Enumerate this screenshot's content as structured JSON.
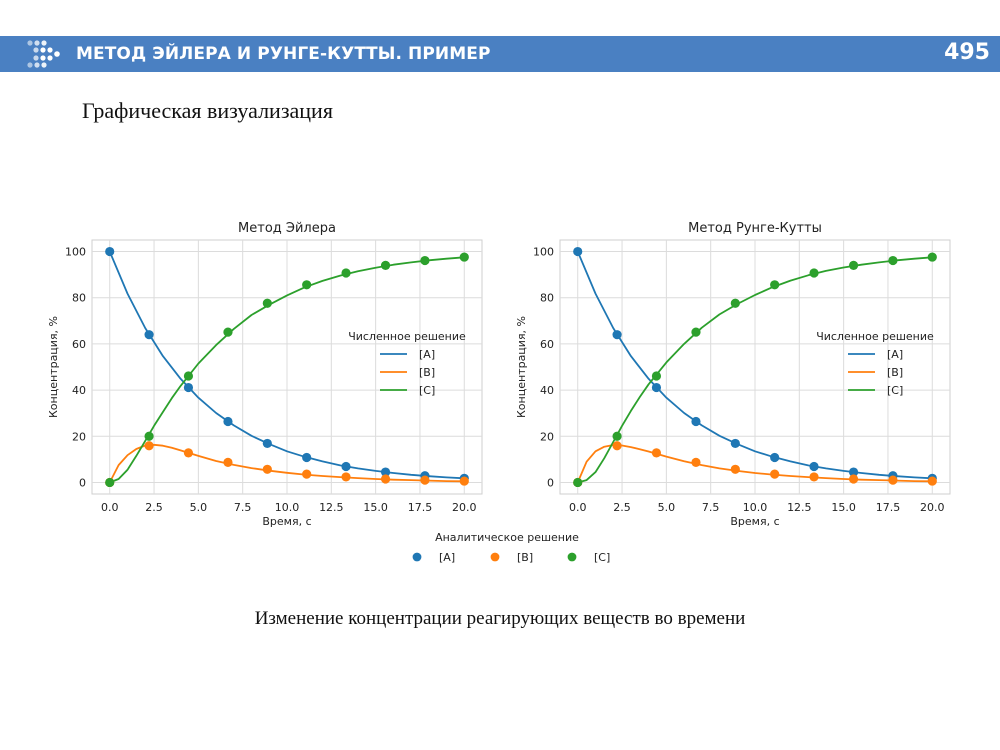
{
  "header": {
    "title": "МЕТОД ЭЙЛЕРА И РУНГЕ-КУТТЫ. ПРИМЕР",
    "page_number": "495",
    "logo_icon": "dots-arrow-logo-icon",
    "background": "#4a80c2"
  },
  "subtitle": "Графическая визуализация",
  "caption": "Изменение концентрации реагирующих веществ во времени",
  "chart_data": [
    {
      "type": "line",
      "title": "Метод Эйлера",
      "xlabel": "Время, с",
      "ylabel": "Концентрация, %",
      "xlim": [
        -1,
        21
      ],
      "ylim": [
        -5,
        105
      ],
      "xticks": [
        "0.0",
        "2.5",
        "5.0",
        "7.5",
        "10.0",
        "12.5",
        "15.0",
        "17.5",
        "20.0"
      ],
      "yticks": [
        "0",
        "20",
        "40",
        "60",
        "80",
        "100"
      ],
      "grid": true,
      "legend": {
        "title": "Численное решение",
        "position": "center-right",
        "entries": [
          "[A]",
          "[B]",
          "[C]"
        ]
      },
      "line_series": [
        {
          "name": "[A]",
          "color": "#1f77b4",
          "x": [
            0,
            1,
            2,
            3,
            4,
            5,
            6,
            7,
            8,
            9,
            10,
            11,
            12,
            13,
            14,
            15,
            16,
            17,
            18,
            19,
            20
          ],
          "y": [
            100,
            81.8,
            66.9,
            54.7,
            44.9,
            36.7,
            30.1,
            24.7,
            20.2,
            16.6,
            13.5,
            11.1,
            9.1,
            7.4,
            6.1,
            5.0,
            4.1,
            3.3,
            2.7,
            2.2,
            1.8
          ]
        },
        {
          "name": "[B]",
          "color": "#ff7f0e",
          "x": [
            0,
            0.5,
            1,
            1.5,
            2,
            2.5,
            3,
            3.5,
            4,
            5,
            6,
            7,
            8,
            9,
            10,
            11,
            12,
            13,
            14,
            15,
            16,
            17,
            18,
            19,
            20
          ],
          "y": [
            0,
            7.5,
            11.8,
            14.5,
            16.0,
            16.3,
            15.9,
            15.0,
            13.9,
            11.5,
            9.3,
            7.6,
            6.2,
            5.1,
            4.2,
            3.4,
            2.8,
            2.3,
            1.9,
            1.5,
            1.2,
            1.0,
            0.8,
            0.6,
            0.5
          ]
        },
        {
          "name": "[C]",
          "color": "#2ca02c",
          "x": [
            0,
            0.5,
            1,
            1.5,
            2,
            2.5,
            3,
            3.5,
            4,
            5,
            6,
            7,
            8,
            9,
            10,
            11,
            12,
            13,
            14,
            15,
            16,
            17,
            18,
            19,
            20
          ],
          "y": [
            0,
            1.5,
            5.5,
            11.5,
            18.0,
            24.5,
            30.5,
            36.5,
            41.8,
            51.5,
            59.5,
            66.5,
            72.5,
            77.0,
            81.0,
            84.5,
            87.3,
            89.6,
            91.5,
            93.0,
            94.3,
            95.3,
            96.2,
            96.9,
            97.5
          ]
        }
      ],
      "point_series": [
        {
          "name": "[A]",
          "color": "#1f77b4",
          "x": [
            0,
            2.22,
            4.44,
            6.67,
            8.89,
            11.11,
            13.33,
            15.56,
            17.78,
            20.0
          ],
          "y": [
            100,
            64.0,
            41.1,
            26.4,
            16.9,
            10.8,
            6.9,
            4.5,
            2.9,
            1.8
          ]
        },
        {
          "name": "[B]",
          "color": "#ff7f0e",
          "x": [
            0,
            2.22,
            4.44,
            6.67,
            8.89,
            11.11,
            13.33,
            15.56,
            17.78,
            20.0
          ],
          "y": [
            0,
            15.9,
            12.8,
            8.7,
            5.7,
            3.6,
            2.4,
            1.5,
            1.0,
            0.6
          ]
        },
        {
          "name": "[C]",
          "color": "#2ca02c",
          "x": [
            0,
            2.22,
            4.44,
            6.67,
            8.89,
            11.11,
            13.33,
            15.56,
            17.78,
            20.0
          ],
          "y": [
            0,
            20.0,
            46.1,
            65.1,
            77.6,
            85.6,
            90.7,
            94.0,
            96.1,
            97.6
          ]
        }
      ]
    },
    {
      "type": "line",
      "title": "Метод Рунге-Кутты",
      "xlabel": "Время, с",
      "ylabel": "Концентрация, %",
      "xlim": [
        -1,
        21
      ],
      "ylim": [
        -5,
        105
      ],
      "xticks": [
        "0.0",
        "2.5",
        "5.0",
        "7.5",
        "10.0",
        "12.5",
        "15.0",
        "17.5",
        "20.0"
      ],
      "yticks": [
        "0",
        "20",
        "40",
        "60",
        "80",
        "100"
      ],
      "grid": true,
      "legend": {
        "title": "Численное решение",
        "position": "center-right",
        "entries": [
          "[A]",
          "[B]",
          "[C]"
        ]
      },
      "line_series": [
        {
          "name": "[A]",
          "color": "#1f77b4",
          "x": [
            0,
            1,
            2,
            3,
            4,
            5,
            6,
            7,
            8,
            9,
            10,
            11,
            12,
            13,
            14,
            15,
            16,
            17,
            18,
            19,
            20
          ],
          "y": [
            100,
            81.8,
            66.9,
            54.7,
            44.9,
            36.7,
            30.1,
            24.7,
            20.2,
            16.6,
            13.5,
            11.1,
            9.1,
            7.4,
            6.1,
            5.0,
            4.1,
            3.3,
            2.7,
            2.2,
            1.8
          ]
        },
        {
          "name": "[B]",
          "color": "#ff7f0e",
          "x": [
            0,
            0.5,
            1,
            1.5,
            2,
            2.5,
            3,
            3.5,
            4,
            5,
            6,
            7,
            8,
            9,
            10,
            11,
            12,
            13,
            14,
            15,
            16,
            17,
            18,
            19,
            20
          ],
          "y": [
            0,
            9.0,
            13.5,
            15.5,
            16.2,
            16.0,
            15.3,
            14.4,
            13.4,
            11.2,
            9.2,
            7.5,
            6.1,
            5.0,
            4.1,
            3.4,
            2.8,
            2.3,
            1.9,
            1.5,
            1.2,
            1.0,
            0.8,
            0.6,
            0.5
          ]
        },
        {
          "name": "[C]",
          "color": "#2ca02c",
          "x": [
            0,
            0.5,
            1,
            1.5,
            2,
            2.5,
            3,
            3.5,
            4,
            5,
            6,
            7,
            8,
            9,
            10,
            11,
            12,
            13,
            14,
            15,
            16,
            17,
            18,
            19,
            20
          ],
          "y": [
            0,
            1.0,
            4.5,
            10.5,
            17.5,
            24.5,
            31.0,
            37.0,
            42.5,
            52.0,
            60.0,
            67.0,
            72.8,
            77.3,
            81.2,
            84.6,
            87.4,
            89.7,
            91.6,
            93.1,
            94.3,
            95.3,
            96.2,
            96.9,
            97.5
          ]
        }
      ],
      "point_series": [
        {
          "name": "[A]",
          "color": "#1f77b4",
          "x": [
            0,
            2.22,
            4.44,
            6.67,
            8.89,
            11.11,
            13.33,
            15.56,
            17.78,
            20.0
          ],
          "y": [
            100,
            64.0,
            41.1,
            26.4,
            16.9,
            10.8,
            6.9,
            4.5,
            2.9,
            1.8
          ]
        },
        {
          "name": "[B]",
          "color": "#ff7f0e",
          "x": [
            0,
            2.22,
            4.44,
            6.67,
            8.89,
            11.11,
            13.33,
            15.56,
            17.78,
            20.0
          ],
          "y": [
            0,
            15.9,
            12.8,
            8.7,
            5.7,
            3.6,
            2.4,
            1.5,
            1.0,
            0.6
          ]
        },
        {
          "name": "[C]",
          "color": "#2ca02c",
          "x": [
            0,
            2.22,
            4.44,
            6.67,
            8.89,
            11.11,
            13.33,
            15.56,
            17.78,
            20.0
          ],
          "y": [
            0,
            20.0,
            46.1,
            65.1,
            77.6,
            85.6,
            90.7,
            94.0,
            96.1,
            97.6
          ]
        }
      ]
    }
  ],
  "shared_legend": {
    "title": "Аналитическое решение",
    "position": "bottom-center",
    "entries": [
      {
        "label": "[A]",
        "color": "#1f77b4"
      },
      {
        "label": "[B]",
        "color": "#ff7f0e"
      },
      {
        "label": "[C]",
        "color": "#2ca02c"
      }
    ]
  }
}
